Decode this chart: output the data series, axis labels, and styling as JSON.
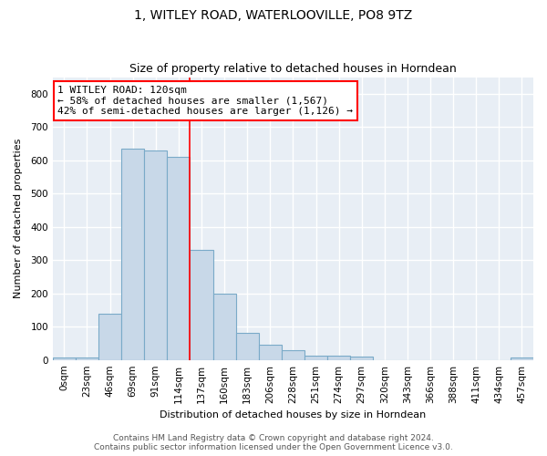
{
  "title": "1, WITLEY ROAD, WATERLOOVILLE, PO8 9TZ",
  "subtitle": "Size of property relative to detached houses in Horndean",
  "xlabel": "Distribution of detached houses by size in Horndean",
  "ylabel": "Number of detached properties",
  "bar_color": "#c8d8e8",
  "bar_edge_color": "#7aaac8",
  "background_color": "#e8eef5",
  "grid_color": "white",
  "categories": [
    "0sqm",
    "23sqm",
    "46sqm",
    "69sqm",
    "91sqm",
    "114sqm",
    "137sqm",
    "160sqm",
    "183sqm",
    "206sqm",
    "228sqm",
    "251sqm",
    "274sqm",
    "297sqm",
    "320sqm",
    "343sqm",
    "366sqm",
    "388sqm",
    "411sqm",
    "434sqm",
    "457sqm"
  ],
  "values": [
    7,
    7,
    140,
    635,
    630,
    610,
    330,
    200,
    82,
    45,
    28,
    12,
    12,
    10,
    0,
    0,
    0,
    0,
    0,
    0,
    7
  ],
  "red_line_x": 5.5,
  "annotation_line1": "1 WITLEY ROAD: 120sqm",
  "annotation_line2": "← 58% of detached houses are smaller (1,567)",
  "annotation_line3": "42% of semi-detached houses are larger (1,126) →",
  "annotation_box_color": "white",
  "annotation_box_edge_color": "red",
  "footer_line1": "Contains HM Land Registry data © Crown copyright and database right 2024.",
  "footer_line2": "Contains public sector information licensed under the Open Government Licence v3.0.",
  "ylim": [
    0,
    850
  ],
  "yticks": [
    0,
    100,
    200,
    300,
    400,
    500,
    600,
    700,
    800
  ],
  "fig_width": 6.0,
  "fig_height": 5.0,
  "title_fontsize": 10,
  "subtitle_fontsize": 9,
  "axis_label_fontsize": 8,
  "tick_fontsize": 7.5,
  "annotation_fontsize": 8,
  "footer_fontsize": 6.5
}
